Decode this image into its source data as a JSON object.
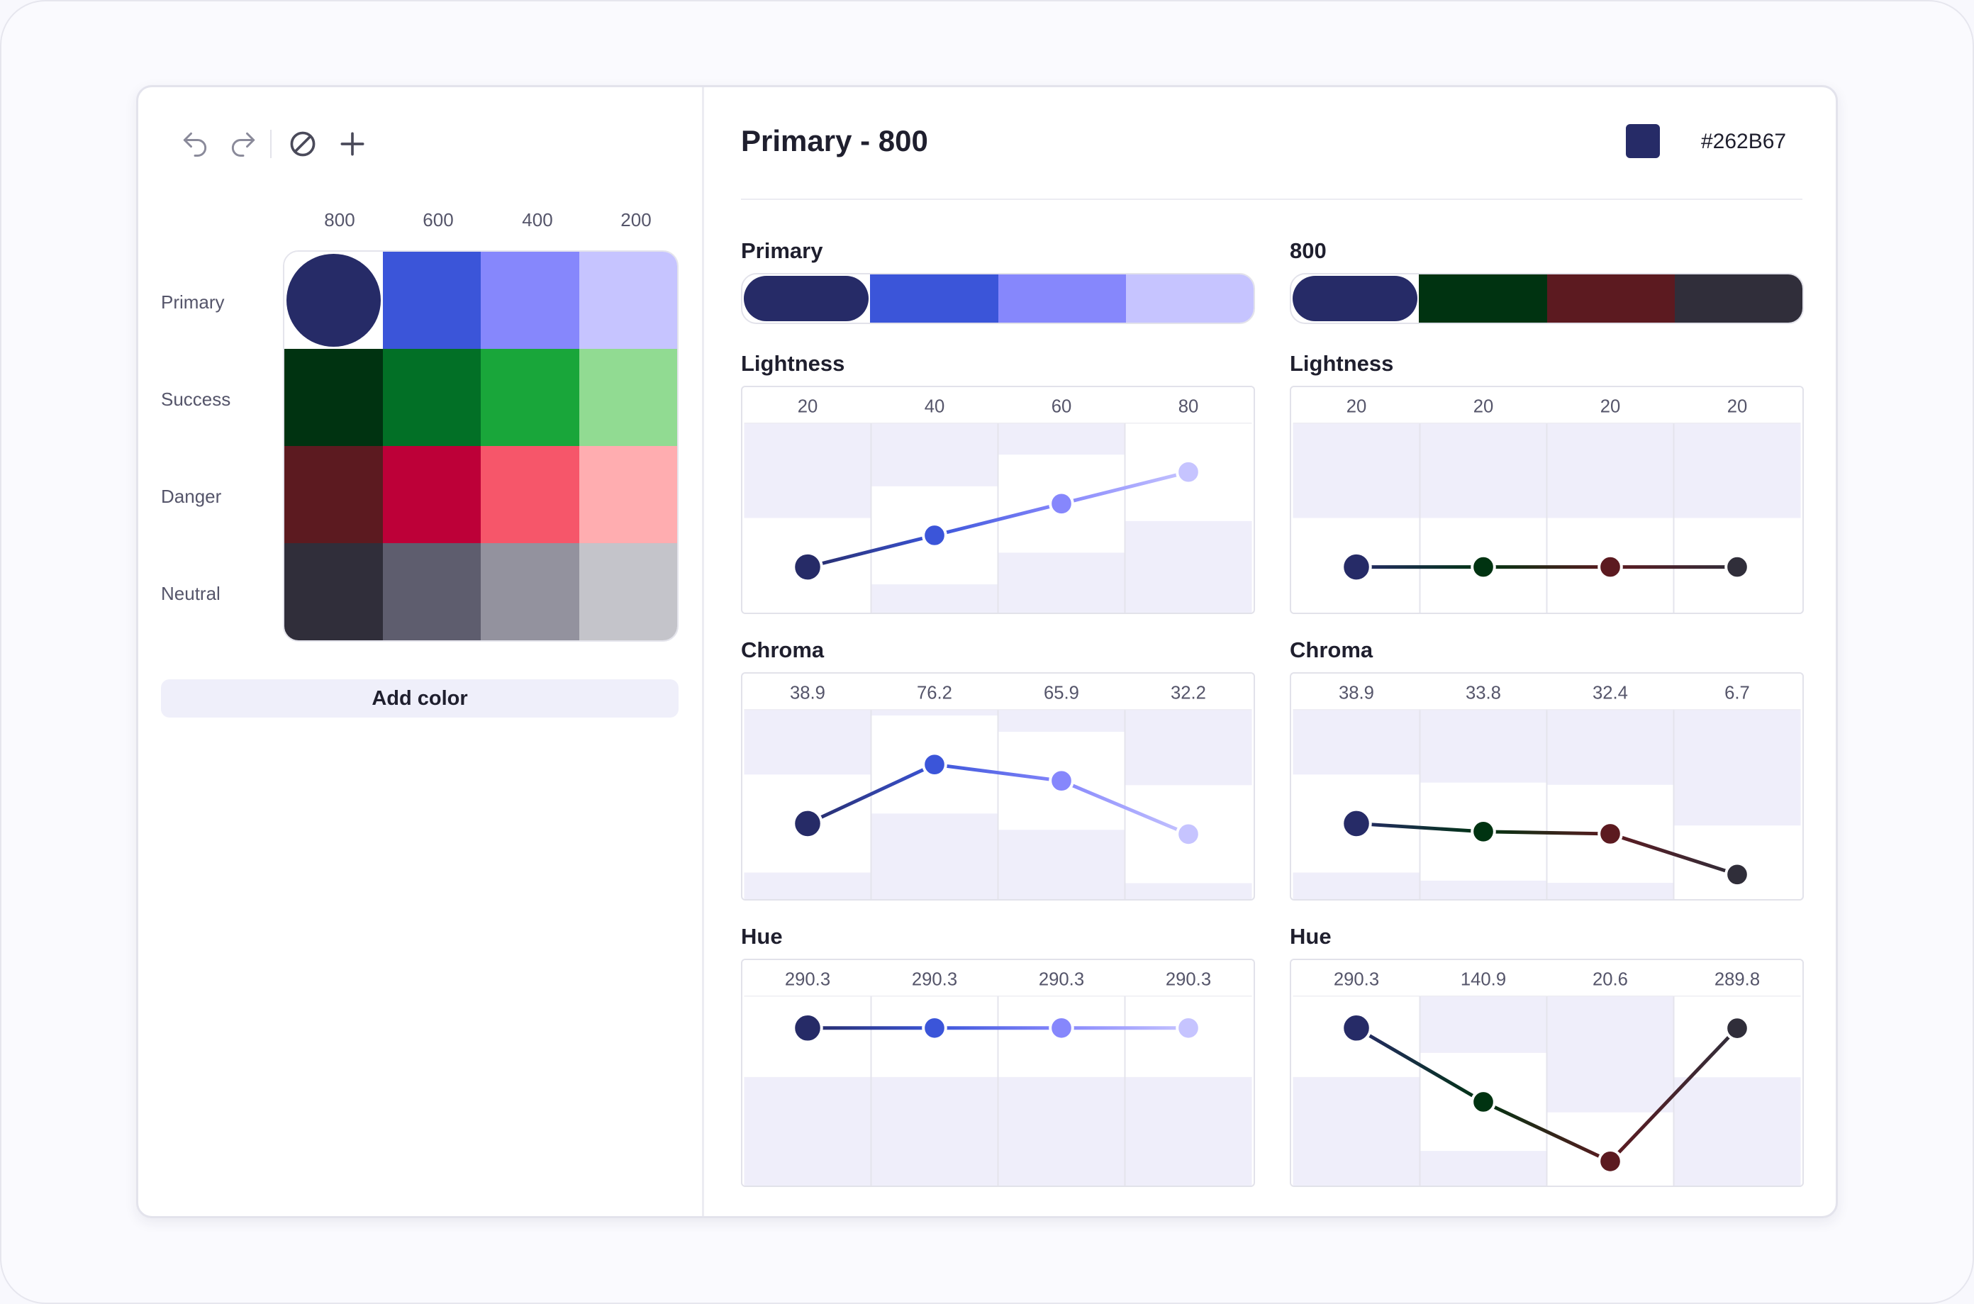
{
  "toolbar": {
    "undo": "undo-icon",
    "redo": "redo-icon",
    "clear": "clear-icon",
    "add": "plus-icon"
  },
  "palette": {
    "columns": [
      "800",
      "600",
      "400",
      "200"
    ],
    "rows": [
      {
        "name": "Primary",
        "colors": [
          "#262B67",
          "#3B55D9",
          "#8687FC",
          "#C6C4FF"
        ]
      },
      {
        "name": "Success",
        "colors": [
          "#003311",
          "#027026",
          "#19A63A",
          "#91DB92"
        ]
      },
      {
        "name": "Danger",
        "colors": [
          "#5C1A20",
          "#BD0038",
          "#F6566A",
          "#FFADB0"
        ]
      },
      {
        "name": "Neutral",
        "colors": [
          "#302E3A",
          "#5E5D6E",
          "#93929E",
          "#C4C4CA"
        ]
      }
    ],
    "selected": {
      "row": 0,
      "col": 0
    },
    "add_label": "Add color"
  },
  "detail": {
    "title": "Primary - 800",
    "hex": "#262B67",
    "swatch": "#262B67"
  },
  "scales": {
    "left": {
      "title": "Primary",
      "colors": [
        "#262B67",
        "#3B55D9",
        "#8687FC",
        "#C6C4FF"
      ],
      "selected": 0
    },
    "right": {
      "title": "800",
      "colors": [
        "#262B67",
        "#003311",
        "#5C1A20",
        "#302E3A"
      ],
      "selected": 0
    }
  },
  "chart_data": [
    {
      "type": "line",
      "group": "Primary",
      "title": "Lightness",
      "values": [
        20,
        40,
        60,
        80
      ],
      "labels": [
        "20",
        "40",
        "60",
        "80"
      ],
      "colors": [
        "#262B67",
        "#3B55D9",
        "#8687FC",
        "#C6C4FF"
      ],
      "ylim": [
        0,
        100
      ]
    },
    {
      "type": "line",
      "group": "800",
      "title": "Lightness",
      "values": [
        20,
        20,
        20,
        20
      ],
      "labels": [
        "20",
        "20",
        "20",
        "20"
      ],
      "colors": [
        "#262B67",
        "#003311",
        "#5C1A20",
        "#302E3A"
      ],
      "ylim": [
        0,
        100
      ]
    },
    {
      "type": "line",
      "group": "Primary",
      "title": "Chroma",
      "values": [
        38.9,
        76.2,
        65.9,
        32.2
      ],
      "labels": [
        "38.9",
        "76.2",
        "65.9",
        "32.2"
      ],
      "colors": [
        "#262B67",
        "#3B55D9",
        "#8687FC",
        "#C6C4FF"
      ],
      "ylim": [
        0,
        100
      ]
    },
    {
      "type": "line",
      "group": "800",
      "title": "Chroma",
      "values": [
        38.9,
        33.8,
        32.4,
        6.7
      ],
      "labels": [
        "38.9",
        "33.8",
        "32.4",
        "6.7"
      ],
      "colors": [
        "#262B67",
        "#003311",
        "#5C1A20",
        "#302E3A"
      ],
      "ylim": [
        0,
        100
      ]
    },
    {
      "type": "line",
      "group": "Primary",
      "title": "Hue",
      "values": [
        290.3,
        290.3,
        290.3,
        290.3
      ],
      "labels": [
        "290.3",
        "290.3",
        "290.3",
        "290.3"
      ],
      "colors": [
        "#262B67",
        "#3B55D9",
        "#8687FC",
        "#C6C4FF"
      ],
      "ylim": [
        0,
        320
      ]
    },
    {
      "type": "line",
      "group": "800",
      "title": "Hue",
      "values": [
        290.3,
        140.9,
        20.6,
        289.8
      ],
      "labels": [
        "290.3",
        "140.9",
        "20.6",
        "289.8"
      ],
      "colors": [
        "#262B67",
        "#003311",
        "#5C1A20",
        "#302E3A"
      ],
      "ylim": [
        0,
        320
      ]
    }
  ]
}
